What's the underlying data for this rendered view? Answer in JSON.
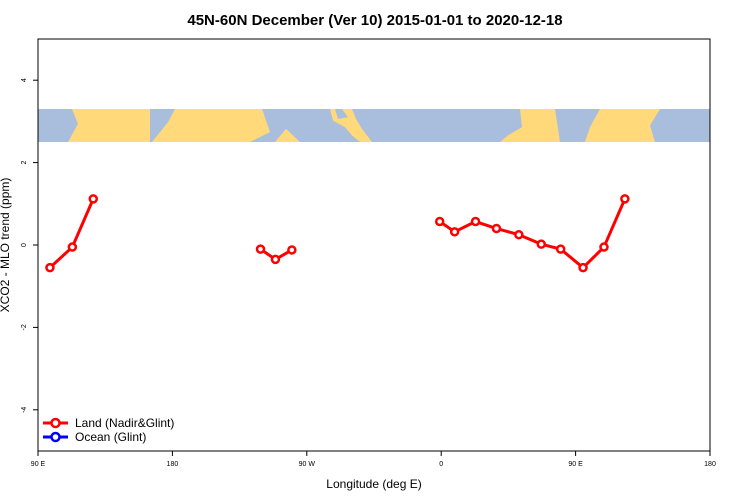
{
  "chart_data": {
    "type": "line",
    "title": "45N-60N December (Ver 10)   2015-01-01 to 2020-12-18",
    "xlabel": "Longitude (deg E)",
    "ylabel": "XCO2 - MLO trend (ppm)",
    "xlim": [
      90,
      540
    ],
    "ylim": [
      -5,
      5
    ],
    "x_ticks": [
      {
        "value": 90,
        "label": "90 E"
      },
      {
        "value": 180,
        "label": "180"
      },
      {
        "value": 270,
        "label": "90 W"
      },
      {
        "value": 360,
        "label": "0"
      },
      {
        "value": 450,
        "label": "90 E"
      },
      {
        "value": 540,
        "label": "180"
      }
    ],
    "y_ticks": [
      {
        "value": -4,
        "label": "-4"
      },
      {
        "value": -2,
        "label": "-2"
      },
      {
        "value": 0,
        "label": "0"
      },
      {
        "value": 2,
        "label": "2"
      },
      {
        "value": 4,
        "label": "4"
      }
    ],
    "map_band": {
      "y_from": 2.5,
      "y_to": 3.3,
      "land_color": "#FFD97A",
      "ocean_color": "#A9BEDD"
    },
    "series": [
      {
        "name": "Land (Nadir&Glint)",
        "color": "#FF0000",
        "segments": [
          [
            {
              "x": 98,
              "y": -0.55
            },
            {
              "x": 113,
              "y": -0.05
            },
            {
              "x": 127,
              "y": 1.12
            }
          ],
          [
            {
              "x": 239,
              "y": -0.1
            },
            {
              "x": 249,
              "y": -0.35
            },
            {
              "x": 260,
              "y": -0.12
            }
          ],
          [
            {
              "x": 359,
              "y": 0.57
            },
            {
              "x": 369,
              "y": 0.32
            },
            {
              "x": 383,
              "y": 0.57
            },
            {
              "x": 397,
              "y": 0.4
            },
            {
              "x": 412,
              "y": 0.25
            },
            {
              "x": 427,
              "y": 0.02
            },
            {
              "x": 440,
              "y": -0.1
            },
            {
              "x": 455,
              "y": -0.55
            },
            {
              "x": 469,
              "y": -0.05
            },
            {
              "x": 483,
              "y": 1.12
            }
          ]
        ]
      },
      {
        "name": "Ocean (Glint)",
        "color": "#0000FF",
        "segments": []
      }
    ]
  }
}
